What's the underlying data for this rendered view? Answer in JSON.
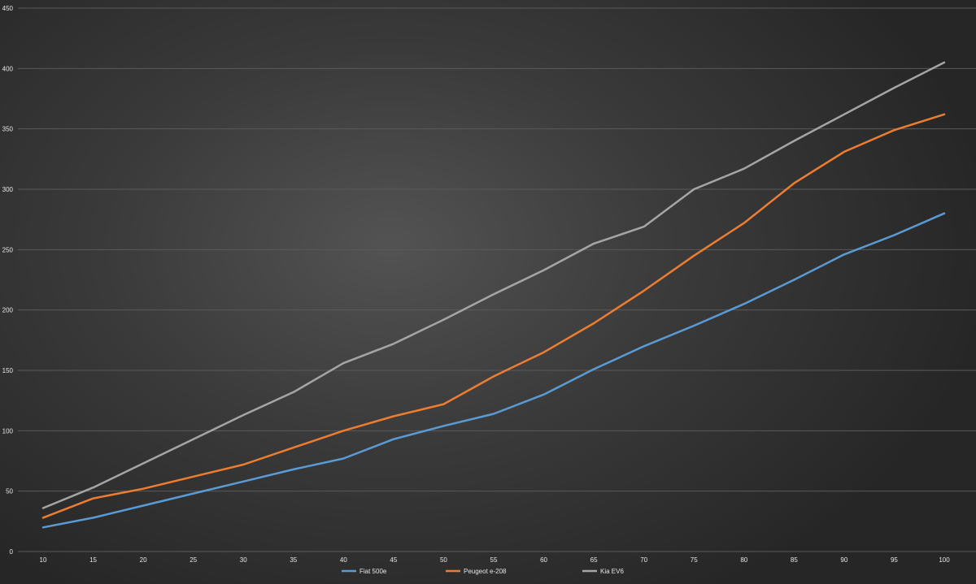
{
  "chart_data": {
    "type": "line",
    "x": [
      10,
      15,
      20,
      25,
      30,
      35,
      40,
      45,
      50,
      55,
      60,
      65,
      70,
      75,
      80,
      85,
      90,
      95,
      100
    ],
    "ylim": [
      0,
      450
    ],
    "yticks": [
      0,
      50,
      100,
      150,
      200,
      250,
      300,
      350,
      400,
      450
    ],
    "grid": true,
    "legend_position": "bottom",
    "series": [
      {
        "name": "Fiat 500e",
        "color": "#5b9bd5",
        "values": [
          20,
          28,
          38,
          48,
          58,
          68,
          77,
          93,
          104,
          114,
          130,
          151,
          170,
          187,
          205,
          225,
          246,
          262,
          280
        ]
      },
      {
        "name": "Peugeot e-208",
        "color": "#ed7d31",
        "values": [
          28,
          44,
          52,
          62,
          72,
          86,
          100,
          112,
          122,
          145,
          165,
          189,
          216,
          245,
          272,
          305,
          331,
          349,
          362
        ]
      },
      {
        "name": "Kia EV6",
        "color": "#a5a5a5",
        "values": [
          36,
          53,
          73,
          93,
          113,
          132,
          156,
          172,
          192,
          213,
          233,
          255,
          269,
          300,
          317,
          340,
          362,
          384,
          405
        ]
      }
    ]
  }
}
